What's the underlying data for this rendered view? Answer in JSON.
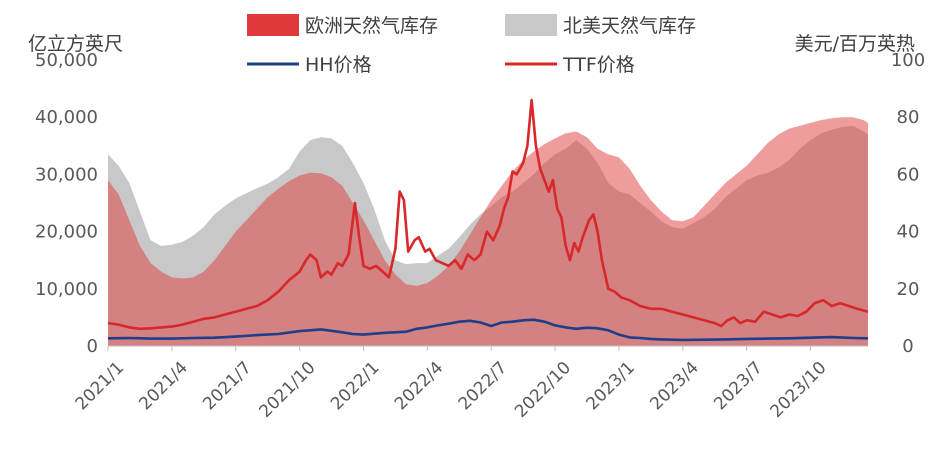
{
  "chart_data": {
    "type": "area",
    "left_unit": "亿立方英尺",
    "right_unit": "美元/百万英热",
    "y_left": {
      "min": 0,
      "max": 50000,
      "ticks": [
        "0",
        "10,000",
        "20,000",
        "30,000",
        "40,000",
        "50,000"
      ]
    },
    "y_right": {
      "min": 0,
      "max": 100,
      "ticks": [
        "0",
        "20",
        "40",
        "60",
        "80",
        "100"
      ]
    },
    "x_ticks": [
      "2021/1",
      "2021/4",
      "2021/7",
      "2021/10",
      "2022/1",
      "2022/4",
      "2022/7",
      "2022/10",
      "2023/1",
      "2023/4",
      "2023/7",
      "2023/10"
    ],
    "x_tick_months": [
      0,
      3,
      6,
      9,
      12,
      15,
      18,
      21,
      24,
      27,
      30,
      33
    ],
    "x_range_months": [
      0,
      35.7
    ],
    "legend": [
      {
        "label": "欧洲天然气库存",
        "kind": "area",
        "color": "#e0393b"
      },
      {
        "label": "北美天然气库存",
        "kind": "area",
        "color": "#c8c8c8"
      },
      {
        "label": "HH价格",
        "kind": "line",
        "color": "#1f3d8a"
      },
      {
        "label": "TTF价格",
        "kind": "line",
        "color": "#d9282b"
      }
    ],
    "series": [
      {
        "name": "北美天然气库存",
        "axis": "left",
        "style": "area",
        "color": "#c8c8c8",
        "points": [
          [
            0,
            33500
          ],
          [
            0.5,
            31500
          ],
          [
            1,
            28500
          ],
          [
            1.5,
            23500
          ],
          [
            2,
            18500
          ],
          [
            2.5,
            17500
          ],
          [
            3,
            17700
          ],
          [
            3.5,
            18200
          ],
          [
            4,
            19300
          ],
          [
            4.5,
            20800
          ],
          [
            5,
            23000
          ],
          [
            5.5,
            24500
          ],
          [
            6,
            25800
          ],
          [
            6.5,
            26700
          ],
          [
            7,
            27600
          ],
          [
            7.5,
            28400
          ],
          [
            8,
            29500
          ],
          [
            8.5,
            31000
          ],
          [
            9,
            34000
          ],
          [
            9.5,
            36000
          ],
          [
            10,
            36500
          ],
          [
            10.5,
            36300
          ],
          [
            11,
            35000
          ],
          [
            11.5,
            32000
          ],
          [
            12,
            28500
          ],
          [
            12.5,
            24000
          ],
          [
            13,
            18500
          ],
          [
            13.5,
            15000
          ],
          [
            14,
            14300
          ],
          [
            14.5,
            14500
          ],
          [
            15,
            14500
          ],
          [
            15.5,
            15800
          ],
          [
            16,
            17000
          ],
          [
            16.5,
            19000
          ],
          [
            17,
            21200
          ],
          [
            17.5,
            23000
          ],
          [
            18,
            24500
          ],
          [
            18.5,
            26000
          ],
          [
            19,
            27000
          ],
          [
            19.5,
            28500
          ],
          [
            20,
            30000
          ],
          [
            20.5,
            32000
          ],
          [
            21,
            33500
          ],
          [
            21.5,
            34500
          ],
          [
            22,
            36000
          ],
          [
            22.5,
            34500
          ],
          [
            23,
            32000
          ],
          [
            23.5,
            28500
          ],
          [
            24,
            27000
          ],
          [
            24.5,
            26500
          ],
          [
            25,
            25000
          ],
          [
            25.5,
            23500
          ],
          [
            26,
            21800
          ],
          [
            26.5,
            20800
          ],
          [
            27,
            20500
          ],
          [
            27.5,
            21500
          ],
          [
            28,
            22500
          ],
          [
            28.5,
            24000
          ],
          [
            29,
            26000
          ],
          [
            29.5,
            27500
          ],
          [
            30,
            29000
          ],
          [
            30.5,
            29800
          ],
          [
            31,
            30300
          ],
          [
            31.5,
            31200
          ],
          [
            32,
            32500
          ],
          [
            32.5,
            34500
          ],
          [
            33,
            36000
          ],
          [
            33.5,
            37200
          ],
          [
            34,
            37800
          ],
          [
            34.5,
            38300
          ],
          [
            35,
            38500
          ],
          [
            35.5,
            37500
          ],
          [
            35.7,
            37000
          ]
        ]
      },
      {
        "name": "欧洲天然气库存",
        "axis": "left",
        "style": "area",
        "color": "#e0393b",
        "points": [
          [
            0,
            29000
          ],
          [
            0.5,
            26500
          ],
          [
            1,
            22000
          ],
          [
            1.5,
            17500
          ],
          [
            2,
            14500
          ],
          [
            2.5,
            13000
          ],
          [
            3,
            12000
          ],
          [
            3.5,
            11800
          ],
          [
            4,
            12000
          ],
          [
            4.5,
            13000
          ],
          [
            5,
            15000
          ],
          [
            5.5,
            17500
          ],
          [
            6,
            20000
          ],
          [
            6.5,
            22000
          ],
          [
            7,
            24000
          ],
          [
            7.5,
            26000
          ],
          [
            8,
            27500
          ],
          [
            8.5,
            28800
          ],
          [
            9,
            29800
          ],
          [
            9.5,
            30300
          ],
          [
            10,
            30200
          ],
          [
            10.5,
            29500
          ],
          [
            11,
            28000
          ],
          [
            11.5,
            25000
          ],
          [
            12,
            22000
          ],
          [
            12.5,
            18500
          ],
          [
            13,
            15000
          ],
          [
            13.5,
            12500
          ],
          [
            14,
            10800
          ],
          [
            14.5,
            10500
          ],
          [
            15,
            11000
          ],
          [
            15.5,
            12300
          ],
          [
            16,
            14000
          ],
          [
            16.5,
            16500
          ],
          [
            17,
            19500
          ],
          [
            17.5,
            22500
          ],
          [
            18,
            25500
          ],
          [
            18.5,
            28000
          ],
          [
            19,
            30500
          ],
          [
            19.5,
            32500
          ],
          [
            20,
            34000
          ],
          [
            20.5,
            35300
          ],
          [
            21,
            36300
          ],
          [
            21.5,
            37200
          ],
          [
            22,
            37500
          ],
          [
            22.5,
            36500
          ],
          [
            23,
            34500
          ],
          [
            23.5,
            33500
          ],
          [
            24,
            33000
          ],
          [
            24.5,
            31000
          ],
          [
            25,
            28000
          ],
          [
            25.5,
            25500
          ],
          [
            26,
            23500
          ],
          [
            26.5,
            22000
          ],
          [
            27,
            21800
          ],
          [
            27.5,
            22500
          ],
          [
            28,
            24500
          ],
          [
            28.5,
            26500
          ],
          [
            29,
            28500
          ],
          [
            29.5,
            30000
          ],
          [
            30,
            31500
          ],
          [
            30.5,
            33500
          ],
          [
            31,
            35500
          ],
          [
            31.5,
            37000
          ],
          [
            32,
            38000
          ],
          [
            32.5,
            38500
          ],
          [
            33,
            39000
          ],
          [
            33.5,
            39500
          ],
          [
            34,
            39800
          ],
          [
            34.5,
            40000
          ],
          [
            35,
            40000
          ],
          [
            35.5,
            39500
          ],
          [
            35.7,
            39000
          ]
        ]
      },
      {
        "name": "TTF价格",
        "axis": "right",
        "style": "line",
        "color": "#d9282b",
        "points": [
          [
            0,
            8
          ],
          [
            0.5,
            7.5
          ],
          [
            1,
            6.5
          ],
          [
            1.5,
            6
          ],
          [
            2,
            6.2
          ],
          [
            2.5,
            6.5
          ],
          [
            3,
            6.8
          ],
          [
            3.5,
            7.5
          ],
          [
            4,
            8.5
          ],
          [
            4.5,
            9.5
          ],
          [
            5,
            10
          ],
          [
            5.5,
            11
          ],
          [
            6,
            12
          ],
          [
            6.5,
            13
          ],
          [
            7,
            14
          ],
          [
            7.5,
            16
          ],
          [
            8,
            19
          ],
          [
            8.5,
            23
          ],
          [
            9,
            26
          ],
          [
            9.3,
            30
          ],
          [
            9.5,
            32
          ],
          [
            9.8,
            30
          ],
          [
            10,
            24
          ],
          [
            10.3,
            26
          ],
          [
            10.5,
            25
          ],
          [
            10.8,
            29
          ],
          [
            11,
            28
          ],
          [
            11.3,
            32
          ],
          [
            11.6,
            50
          ],
          [
            11.8,
            38
          ],
          [
            12,
            28
          ],
          [
            12.3,
            27
          ],
          [
            12.6,
            28
          ],
          [
            12.9,
            26
          ],
          [
            13.2,
            24
          ],
          [
            13.5,
            34
          ],
          [
            13.7,
            54
          ],
          [
            13.9,
            51
          ],
          [
            14.1,
            33
          ],
          [
            14.4,
            37
          ],
          [
            14.6,
            38
          ],
          [
            14.9,
            33
          ],
          [
            15.1,
            34
          ],
          [
            15.4,
            30
          ],
          [
            15.7,
            29
          ],
          [
            16,
            28
          ],
          [
            16.3,
            30
          ],
          [
            16.6,
            27
          ],
          [
            16.9,
            32
          ],
          [
            17.2,
            30
          ],
          [
            17.5,
            32
          ],
          [
            17.8,
            40
          ],
          [
            18.1,
            37
          ],
          [
            18.4,
            42
          ],
          [
            18.6,
            48
          ],
          [
            18.8,
            52
          ],
          [
            19,
            61
          ],
          [
            19.2,
            60
          ],
          [
            19.5,
            64
          ],
          [
            19.7,
            70
          ],
          [
            19.9,
            86
          ],
          [
            20.1,
            70
          ],
          [
            20.3,
            62
          ],
          [
            20.5,
            58
          ],
          [
            20.7,
            54
          ],
          [
            20.9,
            58
          ],
          [
            21.1,
            48
          ],
          [
            21.3,
            45
          ],
          [
            21.5,
            35
          ],
          [
            21.7,
            30
          ],
          [
            21.9,
            36
          ],
          [
            22.1,
            33
          ],
          [
            22.3,
            38
          ],
          [
            22.6,
            44
          ],
          [
            22.8,
            46
          ],
          [
            23,
            40
          ],
          [
            23.2,
            30
          ],
          [
            23.5,
            20
          ],
          [
            23.8,
            19
          ],
          [
            24.1,
            17
          ],
          [
            24.5,
            16
          ],
          [
            25,
            14
          ],
          [
            25.5,
            13
          ],
          [
            26,
            13
          ],
          [
            26.5,
            12
          ],
          [
            27,
            11
          ],
          [
            27.5,
            10
          ],
          [
            28,
            9
          ],
          [
            28.5,
            8
          ],
          [
            28.8,
            7
          ],
          [
            29.1,
            9
          ],
          [
            29.4,
            10
          ],
          [
            29.7,
            8
          ],
          [
            30,
            9
          ],
          [
            30.4,
            8.5
          ],
          [
            30.8,
            12
          ],
          [
            31.2,
            11
          ],
          [
            31.6,
            10
          ],
          [
            32,
            11
          ],
          [
            32.4,
            10.5
          ],
          [
            32.8,
            12
          ],
          [
            33.2,
            15
          ],
          [
            33.6,
            16
          ],
          [
            34,
            14
          ],
          [
            34.4,
            15
          ],
          [
            34.8,
            14
          ],
          [
            35.2,
            13
          ],
          [
            35.7,
            12
          ]
        ]
      },
      {
        "name": "HH价格",
        "axis": "right",
        "style": "line",
        "color": "#1f3d8a",
        "points": [
          [
            0,
            2.7
          ],
          [
            1,
            2.8
          ],
          [
            2,
            2.6
          ],
          [
            3,
            2.6
          ],
          [
            4,
            2.8
          ],
          [
            5,
            2.9
          ],
          [
            6,
            3.3
          ],
          [
            7,
            3.8
          ],
          [
            8,
            4.2
          ],
          [
            9,
            5.2
          ],
          [
            9.5,
            5.5
          ],
          [
            10,
            5.8
          ],
          [
            10.5,
            5.3
          ],
          [
            11,
            4.8
          ],
          [
            11.5,
            4.2
          ],
          [
            12,
            4.0
          ],
          [
            12.5,
            4.3
          ],
          [
            13,
            4.6
          ],
          [
            13.5,
            4.8
          ],
          [
            14,
            5.0
          ],
          [
            14.5,
            6.0
          ],
          [
            15,
            6.5
          ],
          [
            15.5,
            7.2
          ],
          [
            16,
            7.8
          ],
          [
            16.5,
            8.5
          ],
          [
            17,
            8.8
          ],
          [
            17.5,
            8.2
          ],
          [
            18,
            7.0
          ],
          [
            18.5,
            8.2
          ],
          [
            19,
            8.5
          ],
          [
            19.5,
            9.0
          ],
          [
            20,
            9.2
          ],
          [
            20.5,
            8.5
          ],
          [
            21,
            7.2
          ],
          [
            21.5,
            6.5
          ],
          [
            22,
            6.0
          ],
          [
            22.5,
            6.4
          ],
          [
            23,
            6.2
          ],
          [
            23.5,
            5.5
          ],
          [
            24,
            4.0
          ],
          [
            24.5,
            3.0
          ],
          [
            25,
            2.8
          ],
          [
            25.5,
            2.5
          ],
          [
            26,
            2.3
          ],
          [
            27,
            2.1
          ],
          [
            28,
            2.2
          ],
          [
            29,
            2.3
          ],
          [
            30,
            2.5
          ],
          [
            31,
            2.6
          ],
          [
            32,
            2.7
          ],
          [
            33,
            2.9
          ],
          [
            34,
            3.1
          ],
          [
            35,
            2.8
          ],
          [
            35.7,
            2.7
          ]
        ]
      }
    ]
  }
}
